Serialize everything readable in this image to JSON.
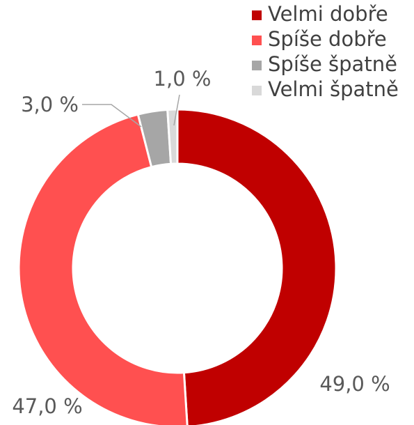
{
  "chart_data": {
    "type": "donut",
    "categories": [
      "Velmi dobře",
      "Spíše dobře",
      "Spíše špatně",
      "Velmi špatně"
    ],
    "values": [
      49,
      47,
      3,
      1
    ],
    "value_labels": [
      "49,0 %",
      "47,0 %",
      "3,0 %",
      "1,0 %"
    ],
    "colors": [
      "#c00000",
      "#ff5050",
      "#a6a6a6",
      "#d9d9d9"
    ],
    "legend": "top-right"
  }
}
